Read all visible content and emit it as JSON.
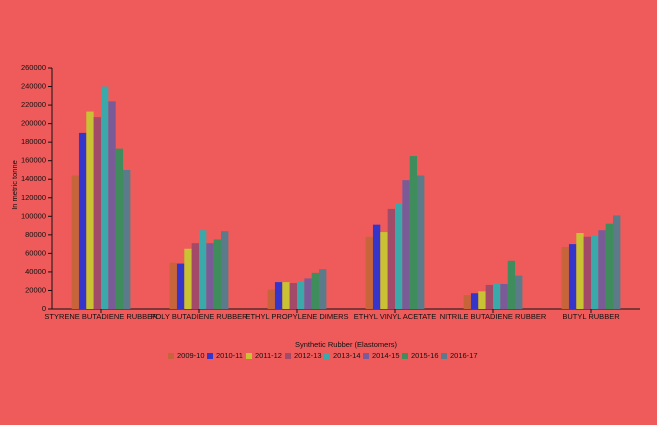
{
  "chart_data": {
    "type": "bar",
    "xlabel": "Synthetic Rubber (Elastomers)",
    "ylabel": "In metric tonne",
    "categories": [
      "STYRENE BUTADIENE RUBBER",
      "POLY BUTADIENE RUBBER",
      "ETHYL PROPYLENE DIMERS",
      "ETHYL VINYL ACETATE",
      "NITRILE BUTADIENE RUBBER",
      "BUTYL RUBBER"
    ],
    "series": [
      {
        "name": "2009-10",
        "color": "#c8643a",
        "values": [
          144000,
          50000,
          21000,
          78000,
          15000,
          67000
        ]
      },
      {
        "name": "2010-11",
        "color": "#3535cc",
        "values": [
          190000,
          49000,
          29000,
          91000,
          17000,
          70000
        ]
      },
      {
        "name": "2011-12",
        "color": "#c9c232",
        "values": [
          213000,
          65000,
          29000,
          83000,
          19000,
          82000
        ]
      },
      {
        "name": "2012-13",
        "color": "#a24a68",
        "values": [
          207000,
          71000,
          28000,
          108000,
          26000,
          78000
        ]
      },
      {
        "name": "2013-14",
        "color": "#3aa9aa",
        "values": [
          240000,
          85000,
          30000,
          114000,
          28000,
          79000
        ]
      },
      {
        "name": "2014-15",
        "color": "#7b5a98",
        "values": [
          224000,
          71000,
          33000,
          139000,
          27000,
          85000
        ]
      },
      {
        "name": "2015-16",
        "color": "#3f8c5c",
        "values": [
          173000,
          75000,
          39000,
          165000,
          52000,
          92000
        ]
      },
      {
        "name": "2016-17",
        "color": "#5b7a8a",
        "values": [
          150000,
          84000,
          43000,
          144000,
          36000,
          101000
        ]
      }
    ],
    "ylim": [
      0,
      260000
    ],
    "yticks": [
      0,
      20000,
      40000,
      60000,
      80000,
      100000,
      120000,
      140000,
      160000,
      180000,
      200000,
      220000,
      240000,
      260000
    ],
    "legend": "bottom"
  }
}
